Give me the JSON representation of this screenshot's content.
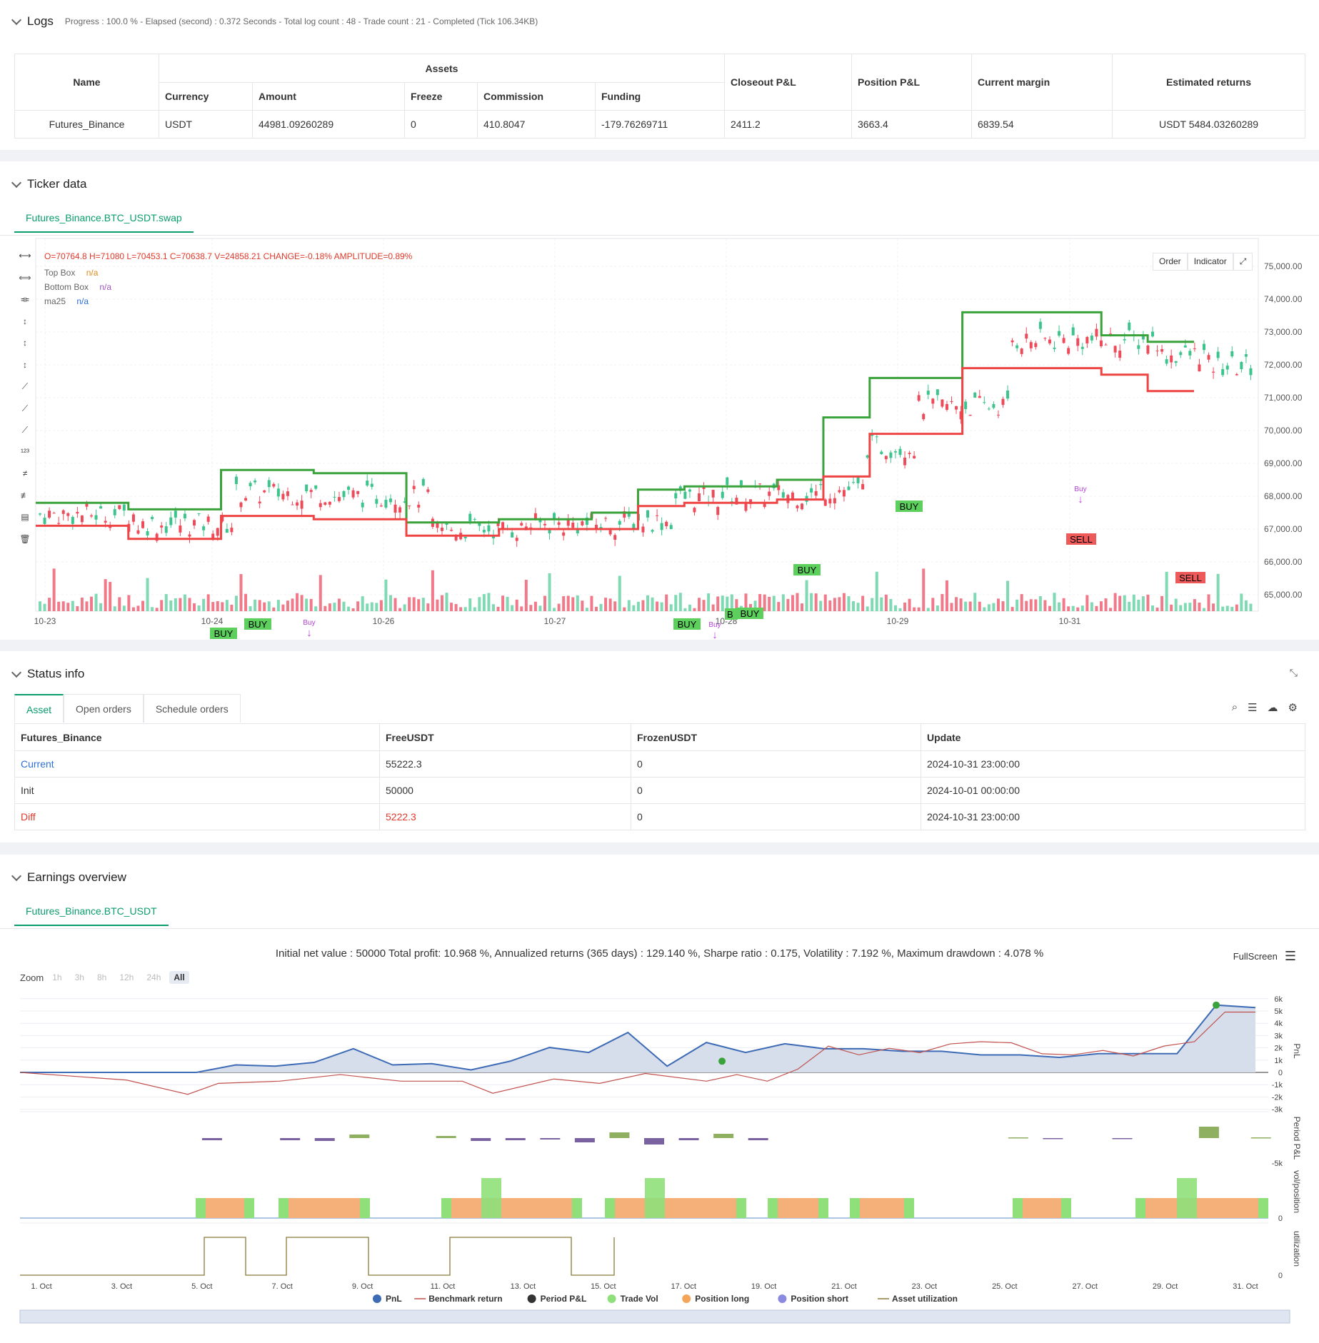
{
  "logs": {
    "title": "Logs",
    "summary": "Progress : 100.0 % - Elapsed (second) : 0.372  Seconds - Total log count : 48 - Trade count : 21 - Completed (Tick 106.34KB)"
  },
  "assets_table": {
    "headers": {
      "name": "Name",
      "assets": "Assets",
      "currency": "Currency",
      "amount": "Amount",
      "freeze": "Freeze",
      "commission": "Commission",
      "funding": "Funding",
      "closeout": "Closeout P&L",
      "position": "Position P&L",
      "margin": "Current margin",
      "returns": "Estimated returns"
    },
    "row": {
      "name": "Futures_Binance",
      "currency": "USDT",
      "amount": "44981.09260289",
      "freeze": "0",
      "commission": "410.8047",
      "funding": "-179.76269711",
      "closeout": "2411.2",
      "position": "3663.4",
      "margin": "6839.54",
      "returns": "USDT 5484.03260289"
    }
  },
  "ticker": {
    "title": "Ticker data",
    "tab": "Futures_Binance.BTC_USDT.swap",
    "ohlc": "O=70764.8 H=71080 L=70453.1 C=70638.7 V=24858.21 CHANGE=-0.18% AMPLITUDE=0.89%",
    "legend": [
      {
        "name": "Top Box",
        "val": "n/a",
        "color": "#e08a1e"
      },
      {
        "name": "Bottom Box",
        "val": "n/a",
        "color": "#9b59b6"
      },
      {
        "name": "ma25",
        "val": "n/a",
        "color": "#2f6fd6"
      }
    ],
    "buttons": {
      "order": "Order",
      "indicator": "Indicator"
    },
    "y_ticks": [
      "75,000.00",
      "74,000.00",
      "73,000.00",
      "72,000.00",
      "71,000.00",
      "70,000.00",
      "69,000.00",
      "68,000.00",
      "67,000.00",
      "66,000.00",
      "65,000.00"
    ],
    "x_ticks": [
      "10-23",
      "10-24",
      "10-26",
      "10-27",
      "10-28",
      "10-29",
      "10-31"
    ],
    "buy_label": "BUY",
    "sell_label": "SELL",
    "buy_arrow": "Buy",
    "buy_count": "1",
    "sell_trunc": "SE",
    "buy_trunc": "B",
    "sell_trunc_left": "ELL"
  },
  "chart_data": {
    "type": "candlestick",
    "y_range": [
      64500,
      75500
    ],
    "top_box": [
      67800,
      67800,
      67600,
      67600,
      68800,
      68800,
      68700,
      68700,
      67200,
      67200,
      67300,
      67300,
      67500,
      68200,
      68300,
      68300,
      68500,
      70400,
      71600,
      71600,
      73600,
      73600,
      73600,
      72900,
      72700
    ],
    "bottom_box": [
      67100,
      67100,
      66700,
      66700,
      67400,
      67400,
      67300,
      67300,
      66800,
      66800,
      67000,
      67000,
      67000,
      67700,
      67800,
      67800,
      67900,
      68600,
      69900,
      69900,
      71900,
      71900,
      71900,
      71700,
      71200
    ]
  },
  "status": {
    "title": "Status info",
    "tabs": [
      "Asset",
      "Open orders",
      "Schedule orders"
    ],
    "headers": [
      "Futures_Binance",
      "FreeUSDT",
      "FrozenUSDT",
      "Update"
    ],
    "rows": [
      [
        "Current",
        "55222.3",
        "0",
        "2024-10-31 23:00:00"
      ],
      [
        "Init",
        "50000",
        "0",
        "2024-10-01 00:00:00"
      ],
      [
        "Diff",
        "5222.3",
        "0",
        "2024-10-31 23:00:00"
      ]
    ]
  },
  "earnings": {
    "title": "Earnings overview",
    "tab": "Futures_Binance.BTC_USDT",
    "summary": "Initial net value : 50000  Total profit: 10.968 %, Annualized returns (365 days) : 129.140 %, Sharpe ratio : 0.175, Volatility : 7.192 %, Maximum drawdown : 4.078 %",
    "fullscreen": "FullScreen",
    "zoom_label": "Zoom",
    "zoom": [
      "1h",
      "3h",
      "8h",
      "12h",
      "24h",
      "All"
    ],
    "pnl_ticks": [
      "6k",
      "5k",
      "4k",
      "3k",
      "2k",
      "1k",
      "0",
      "-1k",
      "-2k",
      "-3k"
    ],
    "axis_labels": [
      "PnL",
      "Period P&L",
      "vol/position",
      "utilization"
    ],
    "period_tick": "-5k",
    "zero": "0",
    "x_ticks": [
      "1. Oct",
      "3. Oct",
      "5. Oct",
      "7. Oct",
      "9. Oct",
      "11. Oct",
      "13. Oct",
      "15. Oct",
      "17. Oct",
      "19. Oct",
      "21. Oct",
      "23. Oct",
      "25. Oct",
      "27. Oct",
      "29. Oct",
      "31. Oct"
    ],
    "legend": [
      {
        "name": "PnL",
        "color": "#3d6bb5",
        "type": "dot"
      },
      {
        "name": "Benchmark return",
        "color": "#c0504d",
        "type": "line"
      },
      {
        "name": "Period P&L",
        "color": "#333333",
        "type": "dot"
      },
      {
        "name": "Trade Vol",
        "color": "#8fe07a",
        "type": "dot"
      },
      {
        "name": "Position long",
        "color": "#f5a55a",
        "type": "dot"
      },
      {
        "name": "Position short",
        "color": "#8a8ae0",
        "type": "dot"
      },
      {
        "name": "Asset utilization",
        "color": "#8a7a3a",
        "type": "line"
      }
    ]
  }
}
